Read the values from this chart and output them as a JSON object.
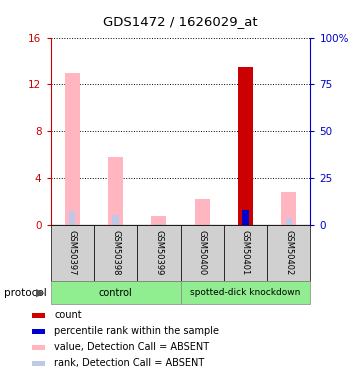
{
  "title": "GDS1472 / 1626029_at",
  "samples": [
    "GSM50397",
    "GSM50398",
    "GSM50399",
    "GSM50400",
    "GSM50401",
    "GSM50402"
  ],
  "value_absent": [
    13.0,
    5.8,
    0.8,
    2.2,
    13.5,
    2.8
  ],
  "rank_absent": [
    7.6,
    5.1,
    0.65,
    null,
    8.1,
    3.7
  ],
  "is_count": [
    false,
    false,
    false,
    false,
    true,
    false
  ],
  "is_rank_present": [
    false,
    false,
    false,
    false,
    true,
    false
  ],
  "ylim_left": [
    0,
    16
  ],
  "ylim_right": [
    0,
    100
  ],
  "yticks_left": [
    0,
    4,
    8,
    12,
    16
  ],
  "yticks_right": [
    0,
    25,
    50,
    75,
    100
  ],
  "yticklabels_right": [
    "0",
    "25",
    "50",
    "75",
    "100%"
  ],
  "color_value_absent": "#FFB6C1",
  "color_rank_absent": "#C0C8E8",
  "color_count": "#CC0000",
  "color_rank_present": "#0000CC",
  "left_axis_color": "#CC0000",
  "right_axis_color": "#0000CC",
  "group_color": "#90EE90",
  "gray_color": "#D0D0D0",
  "legend_items": [
    {
      "color": "#CC0000",
      "label": "count"
    },
    {
      "color": "#0000CC",
      "label": "percentile rank within the sample"
    },
    {
      "color": "#FFB6C1",
      "label": "value, Detection Call = ABSENT"
    },
    {
      "color": "#C0C8E8",
      "label": "rank, Detection Call = ABSENT"
    }
  ]
}
